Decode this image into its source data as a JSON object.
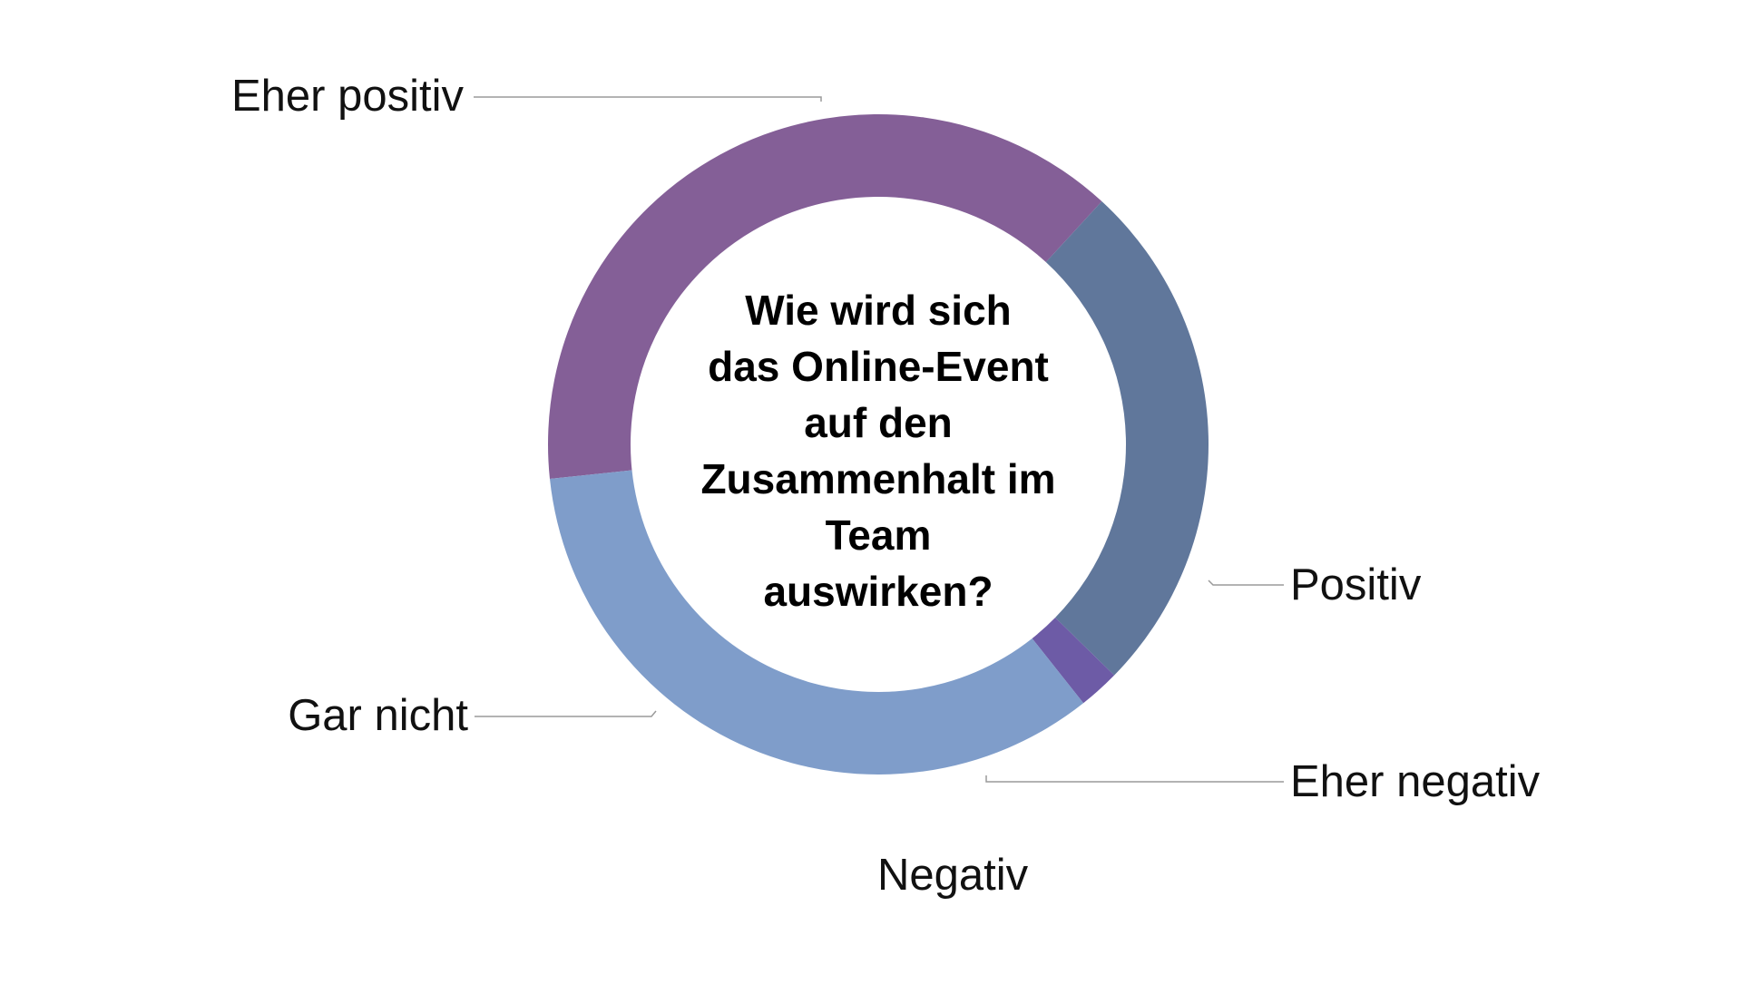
{
  "chart_data": {
    "type": "pie",
    "variant": "donut",
    "title_lines": [
      "Wie wird sich",
      "das Online-Event",
      "auf den",
      "Zusammenhalt im",
      "Team",
      "auswirken?"
    ],
    "slices": [
      {
        "label": "Eher positiv",
        "value": 38.5,
        "color": "#845f97"
      },
      {
        "label": "Positiv",
        "value": 25.5,
        "color": "#60779b"
      },
      {
        "label": "Eher negativ",
        "value": 2.0,
        "color": "#6d5ba6"
      },
      {
        "label": "Negativ",
        "value": 0.0,
        "color": "#6d5ba6"
      },
      {
        "label": "Gar nicht",
        "value": 34.0,
        "color": "#7f9dca"
      }
    ],
    "legend": "none",
    "data_labels": "outside-with-leader-lines"
  }
}
